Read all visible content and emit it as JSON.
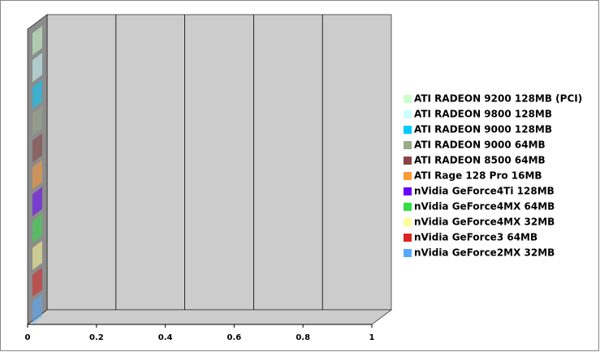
{
  "chart_data": {
    "type": "bar",
    "orientation": "horizontal",
    "categories": [
      null
    ],
    "series": [
      {
        "name": "ATI RADEON 9200 128MB (PCI)",
        "color": "#ccffcc",
        "values": [
          0
        ]
      },
      {
        "name": "ATI RADEON 9800 128MB",
        "color": "#ccffff",
        "values": [
          0
        ]
      },
      {
        "name": "ATI RADEON 9000 128MB",
        "color": "#00ccff",
        "values": [
          0
        ]
      },
      {
        "name": "ATI RADEON 9000 64MB",
        "color": "#99aa88",
        "values": [
          0
        ]
      },
      {
        "name": "ATI RADEON 8500 64MB",
        "color": "#884444",
        "values": [
          0
        ]
      },
      {
        "name": "ATI Rage 128 Pro 16MB",
        "color": "#ff9933",
        "values": [
          0
        ]
      },
      {
        "name": "nVidia GeForce4Ti 128MB",
        "color": "#6600ff",
        "values": [
          0
        ]
      },
      {
        "name": "nVidia GeForce4MX 64MB",
        "color": "#33dd44",
        "values": [
          0
        ]
      },
      {
        "name": "nVidia GeForce4MX 32MB",
        "color": "#ffff99",
        "values": [
          0
        ]
      },
      {
        "name": "nVidia GeForce3 64MB",
        "color": "#dd2222",
        "values": [
          0
        ]
      },
      {
        "name": "nVidia GeForce2MX 32MB",
        "color": "#55aaff",
        "values": [
          0
        ]
      }
    ],
    "xlim": [
      0,
      1
    ],
    "xticks": [
      0,
      0.2,
      0.4,
      0.6,
      0.8,
      1
    ],
    "grid": true,
    "legend": "right"
  }
}
